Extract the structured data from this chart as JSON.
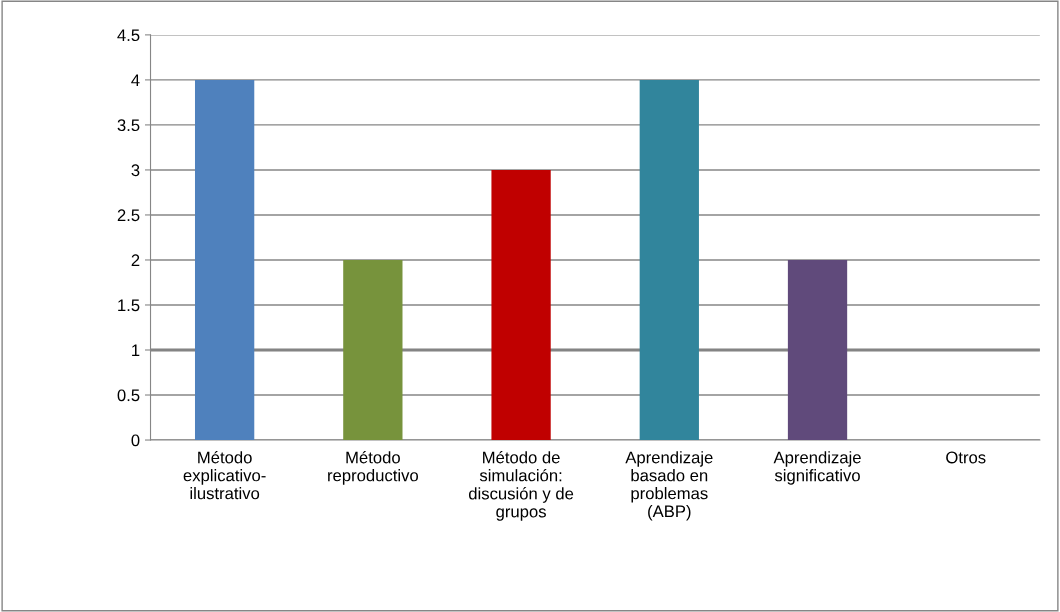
{
  "chart_data": {
    "type": "bar",
    "categories": [
      "Método\nexplicativo-\nilustrativo",
      "Método\nreproductivo",
      "Método de\nsimulación:\ndiscusión y de\ngrupos",
      "Aprendizaje\nbasado en\nproblemas\n(ABP)",
      "Aprendizaje\nsignificativo",
      "Otros"
    ],
    "values": [
      4,
      2,
      3,
      4,
      2,
      0
    ],
    "colors": [
      "#4f81bd",
      "#77933c",
      "#c00000",
      "#31859c",
      "#604a7b",
      "#4f81bd"
    ],
    "ylim": [
      0,
      4.5
    ],
    "yticks": [
      0,
      0.5,
      1,
      1.5,
      2,
      2.5,
      3,
      3.5,
      4,
      4.5
    ],
    "grid": "y",
    "ref_lines": [
      {
        "axis": "y",
        "value": 1,
        "color": "#808080"
      }
    ]
  }
}
